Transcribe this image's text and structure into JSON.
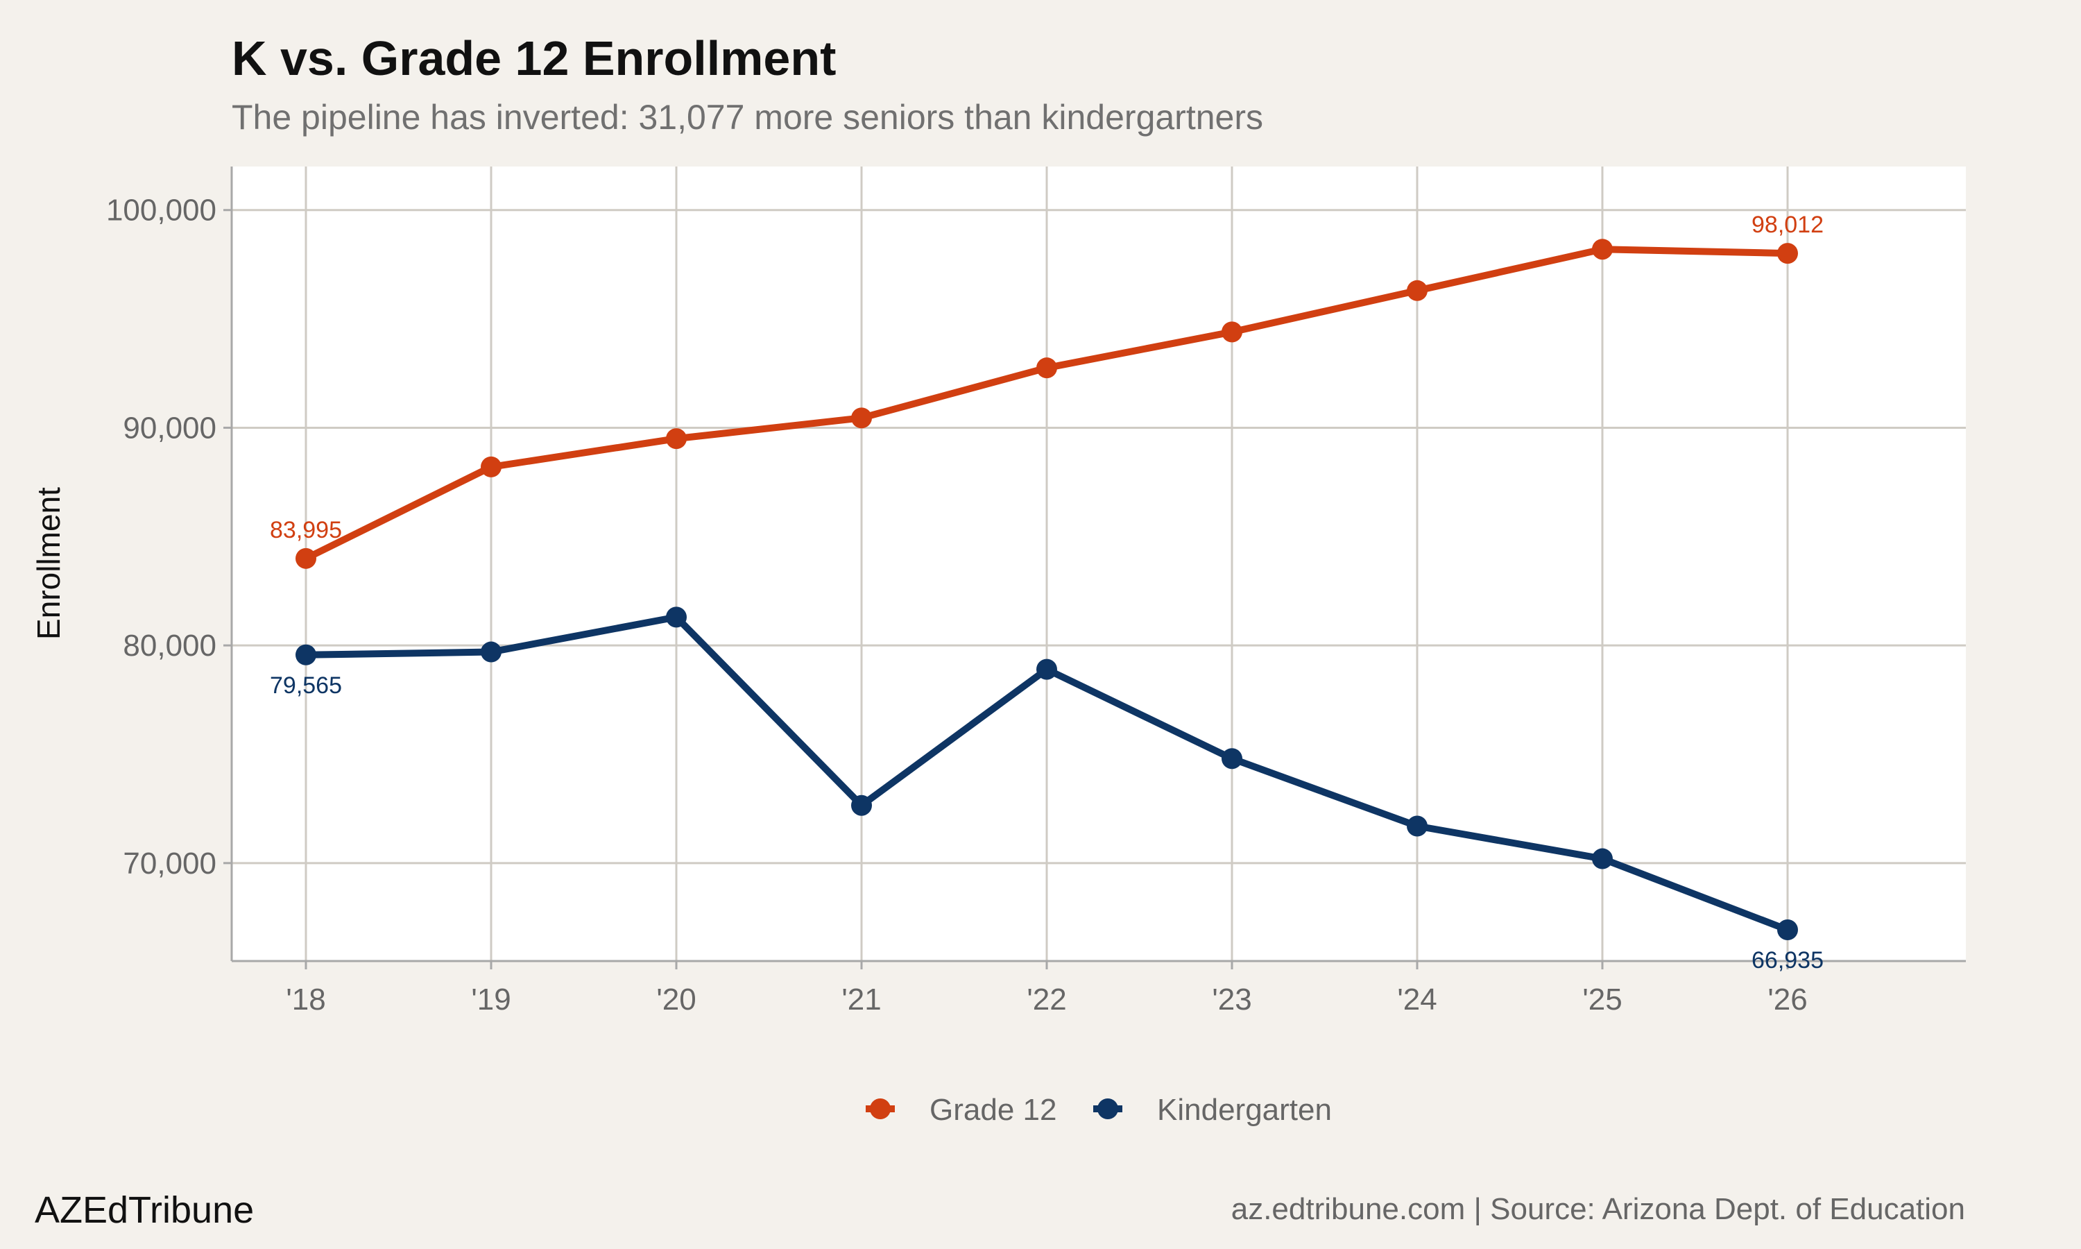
{
  "chart_data": {
    "type": "line",
    "title": "K vs. Grade 12 Enrollment",
    "subtitle": "The pipeline has inverted: 31,077 more seniors than kindergartners",
    "ylabel": "Enrollment",
    "xlabel": "",
    "categories": [
      "'18",
      "'19",
      "'20",
      "'21",
      "'22",
      "'23",
      "'24",
      "'25",
      "'26"
    ],
    "ylim": [
      65500,
      102000
    ],
    "yticks": [
      70000,
      80000,
      90000,
      100000
    ],
    "ytick_labels": [
      "70,000",
      "80,000",
      "90,000",
      "100,000"
    ],
    "grid": true,
    "legend_position": "bottom",
    "series": [
      {
        "name": "Grade 12",
        "color": "#d13f11",
        "values": [
          83995,
          88200,
          89500,
          90450,
          92750,
          94400,
          96300,
          98200,
          98012
        ],
        "labels": [
          {
            "index": 0,
            "text": "83,995",
            "position": "above"
          },
          {
            "index": 8,
            "text": "98,012",
            "position": "above"
          }
        ]
      },
      {
        "name": "Kindergarten",
        "color": "#0e3564",
        "values": [
          79565,
          79700,
          81300,
          72650,
          78900,
          74800,
          71700,
          70200,
          66935
        ],
        "labels": [
          {
            "index": 0,
            "text": "79,565",
            "position": "below"
          },
          {
            "index": 8,
            "text": "66,935",
            "position": "below"
          }
        ]
      }
    ]
  },
  "footer": {
    "brand": "AZEdTribune",
    "source": "az.edtribune.com | Source: Arizona Dept. of Education"
  }
}
